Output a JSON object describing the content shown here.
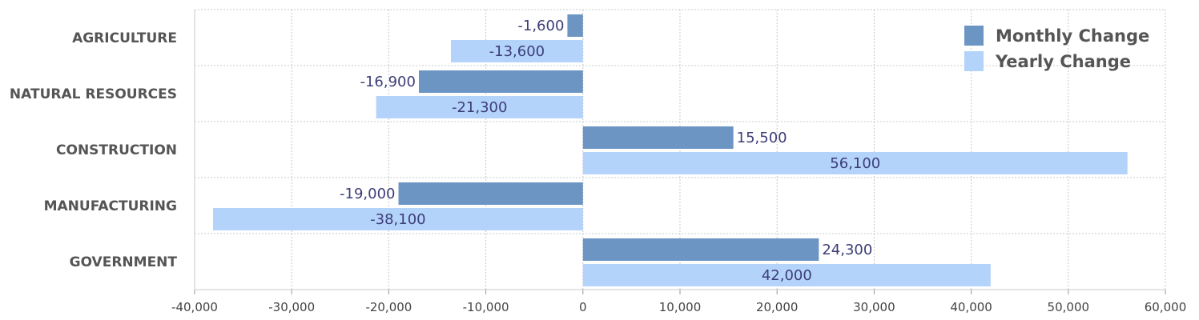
{
  "chart_data": {
    "type": "bar",
    "orientation": "horizontal",
    "categories": [
      "AGRICULTURE",
      "NATURAL RESOURCES",
      "CONSTRUCTION",
      "MANUFACTURING",
      "GOVERNMENT"
    ],
    "series": [
      {
        "name": "Monthly Change",
        "color": "#6c95c3",
        "values": [
          -1600,
          -16900,
          15500,
          -19000,
          24300
        ],
        "labels": [
          "-1,600",
          "-16,900",
          "15,500",
          "-19,000",
          "24,300"
        ]
      },
      {
        "name": "Yearly Change",
        "color": "#b3d3fb",
        "values": [
          -13600,
          -21300,
          56100,
          -38100,
          42000
        ],
        "labels": [
          "-13,600",
          "-21,300",
          "56,100",
          "-38,100",
          "42,000"
        ]
      }
    ],
    "xlim": [
      -40000,
      60000
    ],
    "x_ticks": [
      -40000,
      -30000,
      -20000,
      -10000,
      0,
      10000,
      20000,
      30000,
      40000,
      50000,
      60000
    ],
    "x_tick_labels": [
      "-40,000",
      "-30,000",
      "-20,000",
      "-10,000",
      "0",
      "10,000",
      "20,000",
      "30,000",
      "40,000",
      "50,000",
      "60,000"
    ],
    "grid": true,
    "legend_position": "top-right",
    "value_label_color": "#3d3d78",
    "grid_color": "#c8c8c8"
  }
}
